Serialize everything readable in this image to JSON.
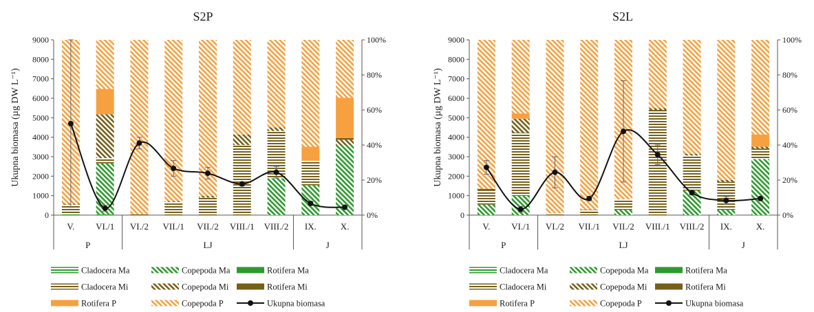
{
  "colors": {
    "green": "#2e9a2e",
    "olive": "#75601a",
    "orange": "#f7a040",
    "black": "#111111"
  },
  "chart_data": [
    {
      "type": "bar",
      "stacked": "percent",
      "title": "S2P",
      "ylabel": "Ukupna biomasa (µg DW L⁻¹)",
      "ylim": [
        0,
        9000
      ],
      "y_ticks": [
        "0",
        "1000",
        "2000",
        "3000",
        "4000",
        "5000",
        "6000",
        "7000",
        "8000",
        "9000"
      ],
      "y2_ticks": [
        "0%",
        "20%",
        "40%",
        "60%",
        "80%",
        "100%"
      ],
      "categories": [
        "V.",
        "VI./1",
        "VI./2",
        "VII./1",
        "VII./2",
        "VIII./1",
        "VIII./2",
        "IX.",
        "X."
      ],
      "groups": [
        {
          "label": "P",
          "categories": [
            "V.",
            "VI./1"
          ]
        },
        {
          "label": "LJ",
          "categories": [
            "VI./2",
            "VII./1",
            "VII./2",
            "VIII./1",
            "VIII./2"
          ]
        },
        {
          "label": "J",
          "categories": [
            "IX.",
            "X."
          ]
        }
      ],
      "series": [
        {
          "name": "Cladocera Ma",
          "values": [
            0.5,
            0.5,
            0,
            0,
            0,
            0,
            0,
            0,
            0
          ]
        },
        {
          "name": "Copepoda Ma",
          "values": [
            0,
            29,
            0,
            0,
            0,
            0,
            21,
            17,
            40
          ]
        },
        {
          "name": "Rotifera Ma",
          "values": [
            0,
            0,
            0,
            0,
            0,
            0,
            0,
            0,
            0
          ]
        },
        {
          "name": "Cladocera Mi",
          "values": [
            5.5,
            3,
            0.5,
            7.5,
            10,
            40,
            27,
            14,
            0
          ]
        },
        {
          "name": "Copepoda Mi",
          "values": [
            0.5,
            25,
            0,
            0.5,
            1,
            6,
            2,
            0,
            3
          ]
        },
        {
          "name": "Rotifera Mi",
          "values": [
            0,
            0,
            0,
            0,
            0,
            0,
            0,
            0,
            1
          ]
        },
        {
          "name": "Rotifera P",
          "values": [
            0,
            14.5,
            0,
            0,
            0,
            0,
            0,
            8,
            23
          ]
        },
        {
          "name": "Copepoda P",
          "values": [
            93.5,
            28,
            99.5,
            92,
            89,
            54,
            50,
            61,
            33
          ]
        }
      ],
      "total_biomass": {
        "name": "Ukupna biomasa",
        "values": [
          4700,
          350,
          3700,
          2400,
          2150,
          1600,
          2200,
          600,
          400
        ],
        "error": [
          4300,
          150,
          300,
          400,
          300,
          100,
          300,
          100,
          100
        ]
      }
    },
    {
      "type": "bar",
      "stacked": "percent",
      "title": "S2L",
      "ylabel": "Ukupna biomasa (µg DW L⁻¹)",
      "ylim": [
        0,
        9000
      ],
      "y_ticks": [
        "0",
        "1000",
        "2000",
        "3000",
        "4000",
        "5000",
        "6000",
        "7000",
        "8000",
        "9000"
      ],
      "y2_ticks": [
        "0%",
        "20%",
        "40%",
        "60%",
        "80%",
        "100%"
      ],
      "categories": [
        "V.",
        "VI./1",
        "VI./2",
        "VII./1",
        "VII./2",
        "VIII./1",
        "VIII./2",
        "IX.",
        "X."
      ],
      "groups": [
        {
          "label": "P",
          "categories": [
            "V.",
            "VI./1"
          ]
        },
        {
          "label": "LJ",
          "categories": [
            "VI./2",
            "VII./1",
            "VII./2",
            "VIII./1",
            "VIII./2"
          ]
        },
        {
          "label": "J",
          "categories": [
            "IX.",
            "X."
          ]
        }
      ],
      "series": [
        {
          "name": "Cladocera Ma",
          "values": [
            0,
            0,
            0,
            0,
            0,
            0,
            0,
            0,
            0
          ]
        },
        {
          "name": "Copepoda Ma",
          "values": [
            6,
            11,
            0,
            0,
            3,
            0,
            14,
            3,
            32
          ]
        },
        {
          "name": "Rotifera Ma",
          "values": [
            0,
            0,
            0,
            0,
            0,
            0,
            0,
            0,
            0
          ]
        },
        {
          "name": "Cladocera Mi",
          "values": [
            8,
            36,
            1,
            3,
            6,
            60,
            20,
            16,
            6
          ]
        },
        {
          "name": "Copepoda Mi",
          "values": [
            0,
            8,
            0,
            0,
            0,
            1,
            1,
            1,
            1
          ]
        },
        {
          "name": "Rotifera Mi",
          "values": [
            1,
            0,
            0,
            0,
            0,
            0,
            0,
            0,
            0
          ]
        },
        {
          "name": "Rotifera P",
          "values": [
            0,
            3,
            0,
            0,
            0,
            0,
            0,
            0,
            7
          ]
        },
        {
          "name": "Copepoda P",
          "values": [
            85,
            42,
            99,
            97,
            91,
            39,
            65,
            80,
            54
          ]
        }
      ],
      "total_biomass": {
        "name": "Ukupna biomasa",
        "values": [
          2450,
          300,
          2200,
          850,
          4300,
          3100,
          1150,
          750,
          850
        ],
        "error": [
          350,
          150,
          800,
          100,
          2600,
          500,
          100,
          200,
          100
        ]
      }
    }
  ],
  "legend": [
    {
      "label": "Cladocera Ma",
      "style": "green-hstripe"
    },
    {
      "label": "Copepoda Ma",
      "style": "green-diag"
    },
    {
      "label": "Rotifera Ma",
      "style": "green-solid"
    },
    {
      "label": "Cladocera Mi",
      "style": "olive-hstripe"
    },
    {
      "label": "Copepoda Mi",
      "style": "olive-diag"
    },
    {
      "label": "Rotifera Mi",
      "style": "olive-solid"
    },
    {
      "label": "Rotifera P",
      "style": "orange-solid"
    },
    {
      "label": "Copepoda P",
      "style": "orange-diag"
    },
    {
      "label": "Ukupna biomasa",
      "style": "line-marker"
    }
  ]
}
